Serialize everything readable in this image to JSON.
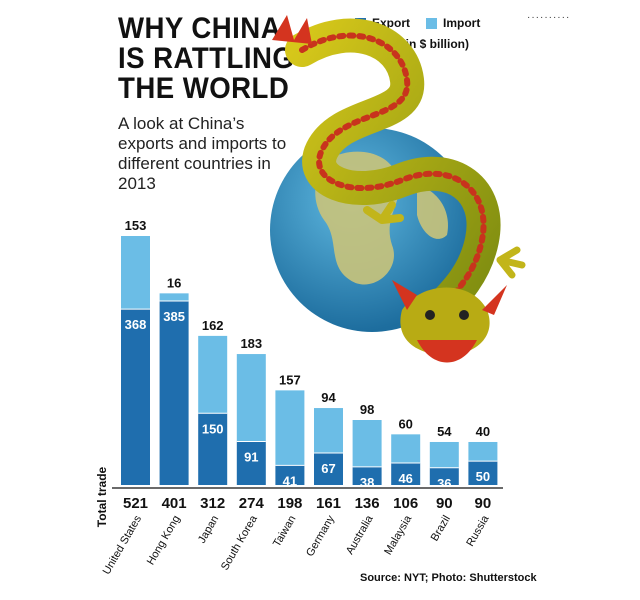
{
  "header": {
    "title_lines": [
      "WHY CHINA",
      "IS RATTLING",
      "THE WORLD"
    ],
    "subtitle": "A look at China’s exports and imports to different countries in 2013"
  },
  "legend": {
    "export_label": "Export",
    "import_label": "Import",
    "note": "(Figures in $ billion)"
  },
  "colors": {
    "export": "#1f6eae",
    "import": "#6bbde6",
    "total_line": "#111111"
  },
  "source": "Source: NYT; Photo: Shutterstock",
  "chart_data": {
    "type": "bar",
    "stacked": true,
    "title": "WHY CHINA IS RATTLING THE WORLD",
    "unit": "$ billion",
    "categories": [
      "United States",
      "Hong Kong",
      "Japan",
      "South Korea",
      "Taiwan",
      "Germany",
      "Australia",
      "Malaysia",
      "Brazil",
      "Russia"
    ],
    "series": [
      {
        "name": "Export",
        "values": [
          368,
          385,
          150,
          91,
          41,
          67,
          38,
          46,
          36,
          50
        ]
      },
      {
        "name": "Import",
        "values": [
          153,
          16,
          162,
          183,
          157,
          94,
          98,
          60,
          54,
          40
        ]
      }
    ],
    "totals": [
      521,
      401,
      312,
      274,
      198,
      161,
      136,
      106,
      90,
      90
    ],
    "total_label": "Total trade",
    "ylim": [
      0,
      521
    ],
    "grid": false
  }
}
